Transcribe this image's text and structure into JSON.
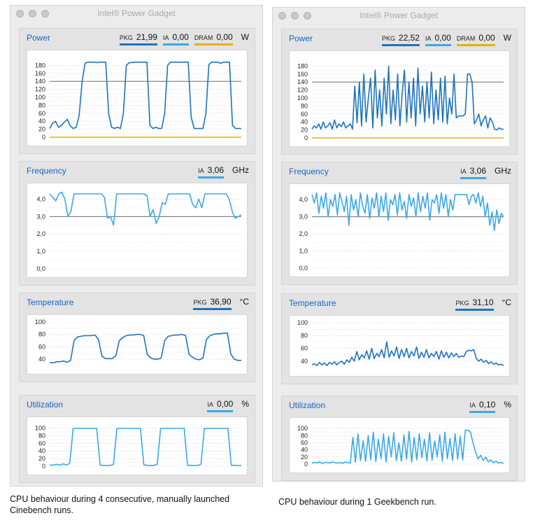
{
  "colors": {
    "pkg": "#1e73be",
    "ia": "#3aa9e8",
    "dram": "#e7b000",
    "ref": "#555555"
  },
  "windows": [
    {
      "title": "Intel® Power Gadget",
      "caption": "CPU behaviour during 4 consecutive, manually launched Cinebench runs.",
      "panels": {
        "power": {
          "title": "Power",
          "unit": "W",
          "readouts": [
            {
              "label": "PKG",
              "value": "21,99",
              "color": "pkg"
            },
            {
              "label": "IA",
              "value": "0,00",
              "color": "ia"
            },
            {
              "label": "DRAM",
              "value": "0,00",
              "color": "dram"
            }
          ],
          "ticks": [
            "180",
            "160",
            "140",
            "120",
            "100",
            "80",
            "60",
            "40",
            "20",
            "0"
          ]
        },
        "frequency": {
          "title": "Frequency",
          "unit": "GHz",
          "readouts": [
            {
              "label": "IA",
              "value": "3,06",
              "color": "ia"
            }
          ],
          "ticks": [
            "4,0",
            "3,0",
            "2,0",
            "1,0",
            "0,0"
          ]
        },
        "temperature": {
          "title": "Temperature",
          "unit": "°C",
          "readouts": [
            {
              "label": "PKG",
              "value": "36,90",
              "color": "pkg"
            }
          ],
          "ticks": [
            "100",
            "80",
            "60",
            "40"
          ]
        },
        "utilization": {
          "title": "Utilization",
          "unit": "%",
          "readouts": [
            {
              "label": "IA",
              "value": "0,00",
              "color": "ia"
            }
          ],
          "ticks": [
            "100",
            "80",
            "60",
            "40",
            "20",
            "0"
          ]
        }
      }
    },
    {
      "title": "Intel® Power Gadget",
      "caption": "CPU behaviour during 1 Geekbench run.",
      "panels": {
        "power": {
          "title": "Power",
          "unit": "W",
          "readouts": [
            {
              "label": "PKG",
              "value": "22,52",
              "color": "pkg"
            },
            {
              "label": "IA",
              "value": "0,00",
              "color": "ia"
            },
            {
              "label": "DRAM",
              "value": "0,00",
              "color": "dram"
            }
          ],
          "ticks": [
            "180",
            "160",
            "140",
            "120",
            "100",
            "80",
            "60",
            "40",
            "20",
            "0"
          ]
        },
        "frequency": {
          "title": "Frequency",
          "unit": "GHz",
          "readouts": [
            {
              "label": "IA",
              "value": "3,06",
              "color": "ia"
            }
          ],
          "ticks": [
            "4,0",
            "3,0",
            "2,0",
            "1,0",
            "0,0"
          ]
        },
        "temperature": {
          "title": "Temperature",
          "unit": "°C",
          "readouts": [
            {
              "label": "PKG",
              "value": "31,10",
              "color": "pkg"
            }
          ],
          "ticks": [
            "100",
            "80",
            "60",
            "40"
          ]
        },
        "utilization": {
          "title": "Utilization",
          "unit": "%",
          "readouts": [
            {
              "label": "IA",
              "value": "0,10",
              "color": "ia"
            }
          ],
          "ticks": [
            "100",
            "80",
            "60",
            "40",
            "20",
            "0"
          ]
        }
      }
    }
  ],
  "chart_data": [
    {
      "type": "line",
      "title": "Power",
      "ylabel": "W",
      "ylim": [
        0,
        200
      ],
      "reference_line": 140,
      "grid": true,
      "series": [
        {
          "name": "PKG",
          "values": [
            22,
            35,
            40,
            25,
            30,
            38,
            45,
            28,
            22,
            25,
            55,
            140,
            185,
            188,
            188,
            188,
            187,
            188,
            188,
            188,
            60,
            25,
            22,
            25,
            22,
            60,
            180,
            187,
            187,
            188,
            188,
            188,
            188,
            188,
            30,
            22,
            25,
            22,
            22,
            60,
            180,
            188,
            188,
            188,
            188,
            188,
            188,
            188,
            50,
            22,
            22,
            22,
            22,
            60,
            182,
            188,
            188,
            188,
            185,
            188,
            188,
            188,
            30,
            22,
            22,
            22
          ]
        },
        {
          "name": "DRAM",
          "values": [
            0,
            0
          ]
        }
      ]
    },
    {
      "type": "line",
      "title": "Frequency",
      "ylabel": "GHz",
      "ylim": [
        0,
        4.5
      ],
      "reference_line": 3.0,
      "grid": true,
      "series": [
        {
          "name": "IA",
          "values": [
            4.3,
            4.1,
            3.9,
            4.3,
            4.4,
            4.0,
            3.0,
            3.3,
            4.3,
            4.3,
            4.3,
            4.3,
            4.3,
            4.3,
            4.3,
            4.3,
            4.3,
            4.3,
            4.1,
            2.9,
            3.0,
            2.5,
            4.3,
            4.3,
            4.3,
            4.3,
            4.3,
            4.3,
            4.3,
            4.3,
            4.3,
            4.3,
            4.2,
            3.0,
            3.4,
            2.6,
            3.0,
            3.8,
            3.7,
            4.3,
            4.3,
            4.3,
            4.3,
            4.3,
            4.3,
            4.3,
            4.3,
            3.7,
            3.5,
            4.0,
            3.5,
            4.3,
            4.3,
            4.3,
            4.3,
            4.3,
            4.3,
            4.3,
            4.3,
            4.0,
            3.3,
            2.9,
            3.0,
            3.1
          ]
        }
      ]
    },
    {
      "type": "line",
      "title": "Temperature",
      "ylabel": "°C",
      "ylim": [
        30,
        100
      ],
      "grid": true,
      "series": [
        {
          "name": "PKG",
          "values": [
            35,
            34,
            36,
            36,
            37,
            35,
            38,
            70,
            76,
            77,
            78,
            78,
            78,
            79,
            72,
            45,
            41,
            41,
            41,
            46,
            70,
            75,
            78,
            79,
            79,
            80,
            80,
            78,
            48,
            42,
            40,
            40,
            42,
            70,
            77,
            78,
            79,
            79,
            80,
            78,
            48,
            43,
            40,
            39,
            42,
            72,
            78,
            80,
            81,
            81,
            82,
            82,
            48,
            40,
            38,
            38
          ]
        }
      ]
    },
    {
      "type": "line",
      "title": "Utilization",
      "ylabel": "%",
      "ylim": [
        0,
        110
      ],
      "grid": true,
      "series": [
        {
          "name": "IA",
          "values": [
            3,
            3,
            5,
            3,
            6,
            3,
            8,
            99,
            99,
            99,
            99,
            99,
            99,
            99,
            99,
            3,
            2,
            2,
            2,
            5,
            99,
            99,
            99,
            99,
            99,
            99,
            99,
            99,
            4,
            2,
            2,
            2,
            5,
            99,
            99,
            99,
            99,
            99,
            99,
            99,
            99,
            3,
            2,
            2,
            2,
            5,
            99,
            99,
            99,
            99,
            99,
            99,
            99,
            99,
            3,
            2,
            2,
            2
          ]
        }
      ]
    },
    {
      "type": "line",
      "title": "Power",
      "ylabel": "W",
      "ylim": [
        0,
        200
      ],
      "reference_line": 140,
      "grid": true,
      "series": [
        {
          "name": "PKG",
          "values": [
            22,
            30,
            25,
            35,
            22,
            40,
            25,
            30,
            38,
            22,
            45,
            25,
            35,
            28,
            40,
            25,
            30,
            35,
            22,
            130,
            38,
            140,
            30,
            160,
            40,
            100,
            150,
            25,
            170,
            50,
            120,
            30,
            150,
            60,
            180,
            35,
            120,
            45,
            160,
            30,
            110,
            170,
            40,
            140,
            50,
            150,
            30,
            175,
            60,
            130,
            40,
            140,
            50,
            165,
            35,
            120,
            45,
            150,
            40,
            155,
            35,
            100,
            60,
            160,
            50,
            55,
            55,
            55,
            60,
            160,
            160,
            140,
            35,
            45,
            60,
            30,
            45,
            55,
            25,
            50,
            40,
            22,
            20,
            25,
            22,
            22
          ]
        },
        {
          "name": "DRAM",
          "values": [
            0,
            0
          ]
        }
      ]
    },
    {
      "type": "line",
      "title": "Frequency",
      "ylabel": "GHz",
      "ylim": [
        0,
        4.5
      ],
      "reference_line": 3.0,
      "grid": true,
      "series": [
        {
          "name": "IA",
          "values": [
            4.3,
            3.8,
            4.4,
            3.2,
            4.2,
            3.5,
            4.4,
            3.0,
            4.0,
            3.6,
            4.3,
            3.1,
            4.4,
            3.9,
            3.3,
            4.2,
            2.5,
            4.3,
            3.4,
            4.0,
            3.0,
            4.4,
            3.6,
            3.2,
            4.3,
            2.9,
            4.1,
            3.5,
            4.4,
            3.0,
            4.2,
            3.3,
            4.4,
            2.8,
            4.0,
            3.7,
            4.3,
            3.1,
            4.4,
            3.4,
            3.9,
            2.9,
            4.3,
            3.6,
            4.1,
            3.0,
            4.4,
            3.3,
            4.2,
            3.5,
            4.4,
            2.8,
            4.0,
            3.8,
            4.3,
            3.2,
            4.4,
            3.5,
            4.3,
            3.0,
            4.0,
            3.4,
            4.3,
            4.3,
            4.3,
            4.3,
            4.3,
            4.3,
            3.7,
            4.2,
            4.3,
            3.8,
            4.4,
            3.6,
            4.2,
            3.0,
            3.8,
            2.5,
            3.3,
            2.2,
            3.4,
            2.6,
            3.2,
            3.0
          ]
        }
      ]
    },
    {
      "type": "line",
      "title": "Temperature",
      "ylabel": "°C",
      "ylim": [
        30,
        100
      ],
      "grid": true,
      "series": [
        {
          "name": "PKG",
          "values": [
            34,
            36,
            33,
            38,
            34,
            37,
            33,
            38,
            35,
            39,
            34,
            38,
            40,
            35,
            42,
            38,
            46,
            40,
            55,
            42,
            50,
            45,
            56,
            43,
            60,
            44,
            52,
            47,
            58,
            45,
            70,
            46,
            56,
            48,
            62,
            44,
            58,
            47,
            60,
            45,
            55,
            48,
            62,
            44,
            54,
            46,
            58,
            45,
            52,
            47,
            55,
            43,
            56,
            46,
            54,
            45,
            53,
            47,
            52,
            46,
            48,
            47,
            55,
            57,
            56,
            58,
            44,
            40,
            43,
            38,
            41,
            36,
            39,
            35,
            37,
            34,
            35,
            33
          ]
        }
      ]
    },
    {
      "type": "line",
      "title": "Utilization",
      "ylabel": "%",
      "ylim": [
        0,
        110
      ],
      "grid": true,
      "series": [
        {
          "name": "IA",
          "values": [
            3,
            5,
            3,
            6,
            2,
            4,
            5,
            3,
            6,
            4,
            3,
            5,
            2,
            6,
            4,
            3,
            75,
            5,
            85,
            10,
            65,
            8,
            80,
            12,
            90,
            7,
            70,
            15,
            85,
            6,
            78,
            20,
            88,
            10,
            60,
            8,
            82,
            14,
            92,
            6,
            75,
            12,
            85,
            18,
            70,
            9,
            88,
            11,
            65,
            20,
            82,
            8,
            90,
            15,
            72,
            10,
            85,
            14,
            78,
            12,
            95,
            95,
            90,
            60,
            35,
            15,
            25,
            10,
            20,
            6,
            12,
            4,
            8,
            3,
            5,
            2
          ]
        }
      ]
    }
  ]
}
